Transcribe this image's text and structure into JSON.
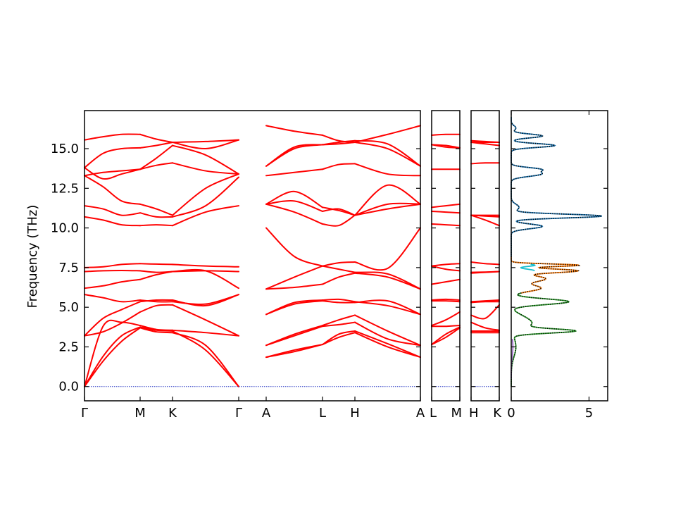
{
  "chart_data": {
    "type": "line",
    "ylabel": "Frequency (THz)",
    "ylim": [
      -0.9,
      17.4
    ],
    "yticks": [
      0.0,
      2.5,
      5.0,
      7.5,
      10.0,
      12.5,
      15.0
    ],
    "ytick_labels": [
      "0.0",
      "2.5",
      "5.0",
      "7.5",
      "10.0",
      "12.5",
      "15.0"
    ],
    "band_color": "#ff0000",
    "panels": [
      {
        "x_labels": [
          "Γ",
          "M",
          "K",
          "Γ",
          "A",
          "L",
          "H",
          "A"
        ],
        "segments": [
          {
            "from": "Γ",
            "to": "M",
            "bands": [
              [
                0.0,
                1.6,
                2.85,
                3.7
              ],
              [
                0.0,
                1.9,
                3.2,
                3.75
              ],
              [
                0.0,
                3.8,
                4.05,
                3.85
              ],
              [
                3.2,
                3.45,
                4.0,
                4.7
              ],
              [
                3.2,
                4.3,
                4.85,
                5.35
              ],
              [
                5.8,
                5.6,
                5.35,
                5.45
              ],
              [
                6.2,
                6.35,
                6.6,
                6.75
              ],
              [
                7.25,
                7.3,
                7.32,
                7.3
              ],
              [
                7.5,
                7.55,
                7.7,
                7.75
              ],
              [
                10.7,
                10.5,
                10.2,
                10.15
              ],
              [
                11.4,
                11.2,
                10.8,
                10.95
              ],
              [
                13.3,
                12.6,
                11.7,
                11.5
              ],
              [
                13.3,
                13.5,
                13.6,
                13.7
              ],
              [
                13.8,
                13.1,
                13.4,
                13.7
              ],
              [
                13.8,
                14.7,
                15.0,
                15.05
              ],
              [
                15.55,
                15.75,
                15.9,
                15.9
              ]
            ]
          },
          {
            "from": "M",
            "to": "K",
            "bands": [
              [
                3.7,
                3.45,
                3.4
              ],
              [
                3.75,
                3.55,
                3.5
              ],
              [
                3.85,
                3.6,
                3.55
              ],
              [
                4.7,
                5.1,
                5.15
              ],
              [
                5.35,
                5.45,
                5.45
              ],
              [
                5.45,
                5.35,
                5.35
              ],
              [
                6.75,
                7.05,
                7.25
              ],
              [
                7.3,
                7.2,
                7.25
              ],
              [
                7.75,
                7.72,
                7.7
              ],
              [
                10.15,
                10.2,
                10.15
              ],
              [
                10.95,
                10.7,
                10.7
              ],
              [
                11.5,
                11.2,
                10.8
              ],
              [
                13.7,
                13.95,
                14.1
              ],
              [
                13.7,
                14.4,
                15.2
              ],
              [
                15.05,
                15.2,
                15.4
              ],
              [
                15.9,
                15.6,
                15.4
              ]
            ]
          },
          {
            "from": "K",
            "to": "Γ",
            "bands": [
              [
                3.4,
                2.6,
                0.0
              ],
              [
                3.5,
                2.3,
                0.0
              ],
              [
                3.55,
                3.4,
                3.2
              ],
              [
                5.15,
                4.2,
                3.2
              ],
              [
                5.45,
                5.1,
                5.8
              ],
              [
                5.35,
                5.2,
                5.8
              ],
              [
                7.25,
                7.3,
                6.2
              ],
              [
                7.25,
                7.3,
                7.25
              ],
              [
                7.7,
                7.6,
                7.55
              ],
              [
                10.15,
                11.0,
                11.4
              ],
              [
                10.7,
                11.4,
                13.2
              ],
              [
                10.8,
                12.5,
                13.4
              ],
              [
                14.1,
                13.6,
                13.4
              ],
              [
                15.2,
                14.6,
                13.4
              ],
              [
                15.4,
                15.0,
                15.55
              ],
              [
                15.4,
                15.45,
                15.55
              ]
            ]
          },
          {
            "from": "A",
            "to": "L",
            "bands": [
              [
                1.85,
                2.2,
                2.65
              ],
              [
                1.85,
                2.3,
                2.65
              ],
              [
                2.6,
                3.2,
                3.8
              ],
              [
                2.6,
                3.3,
                3.85
              ],
              [
                4.55,
                5.2,
                5.4
              ],
              [
                4.55,
                5.3,
                5.45
              ],
              [
                6.15,
                6.25,
                6.45
              ],
              [
                6.15,
                6.9,
                7.6
              ],
              [
                10.0,
                8.2,
                7.6
              ],
              [
                11.5,
                11.0,
                10.25
              ],
              [
                11.5,
                11.7,
                11.05
              ],
              [
                11.5,
                12.3,
                11.3
              ],
              [
                13.3,
                13.5,
                13.7
              ],
              [
                13.9,
                15.0,
                15.25
              ],
              [
                13.9,
                15.1,
                15.25
              ],
              [
                16.45,
                16.1,
                15.85
              ]
            ]
          },
          {
            "from": "L",
            "to": "H",
            "bands": [
              [
                2.65,
                3.1,
                3.4
              ],
              [
                2.65,
                3.3,
                3.5
              ],
              [
                3.8,
                3.9,
                4.05
              ],
              [
                3.85,
                4.2,
                4.5
              ],
              [
                5.4,
                5.3,
                5.3
              ],
              [
                5.45,
                5.5,
                5.35
              ],
              [
                6.45,
                6.9,
                7.15
              ],
              [
                7.6,
                7.4,
                7.2
              ],
              [
                7.6,
                7.8,
                7.85
              ],
              [
                10.25,
                10.15,
                10.8
              ],
              [
                11.05,
                11.2,
                10.8
              ],
              [
                11.3,
                11.1,
                10.8
              ],
              [
                13.7,
                14.0,
                14.05
              ],
              [
                15.25,
                15.3,
                15.4
              ],
              [
                15.25,
                15.4,
                15.5
              ],
              [
                15.85,
                15.5,
                15.4
              ]
            ]
          },
          {
            "from": "H",
            "to": "A",
            "bands": [
              [
                3.4,
                2.5,
                1.85
              ],
              [
                3.5,
                2.7,
                1.85
              ],
              [
                4.05,
                3.0,
                2.6
              ],
              [
                4.5,
                3.5,
                2.6
              ],
              [
                5.3,
                5.4,
                4.55
              ],
              [
                5.35,
                5.1,
                4.55
              ],
              [
                7.15,
                6.9,
                6.15
              ],
              [
                7.2,
                7.1,
                6.15
              ],
              [
                7.85,
                7.45,
                10.0
              ],
              [
                10.8,
                11.2,
                11.5
              ],
              [
                10.8,
                11.5,
                11.5
              ],
              [
                10.8,
                12.7,
                11.5
              ],
              [
                14.05,
                13.4,
                13.3
              ],
              [
                15.4,
                15.0,
                13.9
              ],
              [
                15.5,
                15.3,
                13.9
              ],
              [
                15.4,
                15.9,
                16.45
              ]
            ]
          }
        ]
      },
      {
        "x_labels": [
          "L",
          "M"
        ],
        "segments": [
          {
            "from": "L",
            "to": "M",
            "bands": [
              [
                2.65,
                3.1,
                3.7
              ],
              [
                2.65,
                3.3,
                3.75
              ],
              [
                3.8,
                3.8,
                3.85
              ],
              [
                3.85,
                4.2,
                4.7
              ],
              [
                5.4,
                5.4,
                5.35
              ],
              [
                5.45,
                5.5,
                5.45
              ],
              [
                6.45,
                6.6,
                6.75
              ],
              [
                7.6,
                7.4,
                7.3
              ],
              [
                7.6,
                7.7,
                7.75
              ],
              [
                10.25,
                10.2,
                10.15
              ],
              [
                11.05,
                11.0,
                10.95
              ],
              [
                11.3,
                11.4,
                11.5
              ],
              [
                13.7,
                13.7,
                13.7
              ],
              [
                15.25,
                15.1,
                15.05
              ],
              [
                15.25,
                15.2,
                15.05
              ],
              [
                15.85,
                15.9,
                15.9
              ]
            ]
          }
        ]
      },
      {
        "x_labels": [
          "H",
          "K"
        ],
        "segments": [
          {
            "from": "H",
            "to": "K",
            "bands": [
              [
                3.4,
                3.4,
                3.4
              ],
              [
                3.5,
                3.5,
                3.5
              ],
              [
                4.05,
                3.7,
                3.55
              ],
              [
                4.5,
                4.3,
                5.15
              ],
              [
                5.3,
                5.35,
                5.35
              ],
              [
                5.35,
                5.4,
                5.45
              ],
              [
                7.15,
                7.2,
                7.25
              ],
              [
                7.2,
                7.22,
                7.25
              ],
              [
                7.85,
                7.75,
                7.7
              ],
              [
                10.8,
                10.5,
                10.15
              ],
              [
                10.8,
                10.75,
                10.7
              ],
              [
                10.8,
                10.8,
                10.8
              ],
              [
                14.05,
                14.1,
                14.1
              ],
              [
                15.4,
                15.3,
                15.2
              ],
              [
                15.5,
                15.45,
                15.4
              ],
              [
                15.4,
                15.4,
                15.4
              ]
            ]
          }
        ]
      }
    ],
    "dos": {
      "xlim": [
        0,
        6.2
      ],
      "xticks": [
        0,
        5
      ],
      "xtick_labels": [
        "0",
        "5"
      ],
      "total_color": "#000000",
      "peaks_total": [
        [
          2.5,
          0.3,
          0.6
        ],
        [
          3.5,
          3.8,
          0.13
        ],
        [
          3.9,
          0.9,
          0.25
        ],
        [
          4.3,
          0.8,
          0.3
        ],
        [
          5.35,
          3.7,
          0.18
        ],
        [
          6.2,
          1.9,
          0.2
        ],
        [
          6.8,
          2.2,
          0.2
        ],
        [
          7.3,
          4.2,
          0.12
        ],
        [
          7.65,
          4.3,
          0.08
        ],
        [
          10.1,
          2.0,
          0.15
        ],
        [
          10.75,
          5.8,
          0.12
        ],
        [
          11.3,
          0.5,
          0.2
        ],
        [
          13.4,
          1.9,
          0.15
        ],
        [
          13.7,
          1.7,
          0.12
        ],
        [
          15.2,
          2.8,
          0.12
        ],
        [
          15.8,
          2.0,
          0.12
        ],
        [
          16.3,
          0.3,
          0.15
        ]
      ],
      "partials": [
        {
          "color": "#2ca02c",
          "ymin": 0.0,
          "ymax": 5.9
        },
        {
          "color": "#ff7f0e",
          "ymin": 5.9,
          "ymax": 8.2
        },
        {
          "color": "#1f77b4",
          "ymin": 8.2,
          "ymax": 17.0
        },
        {
          "color": "#17becf",
          "ymin": 7.3,
          "ymax": 7.7
        },
        {
          "color": "#9467bd",
          "ymin": 0.5,
          "ymax": 3.0
        }
      ]
    }
  }
}
